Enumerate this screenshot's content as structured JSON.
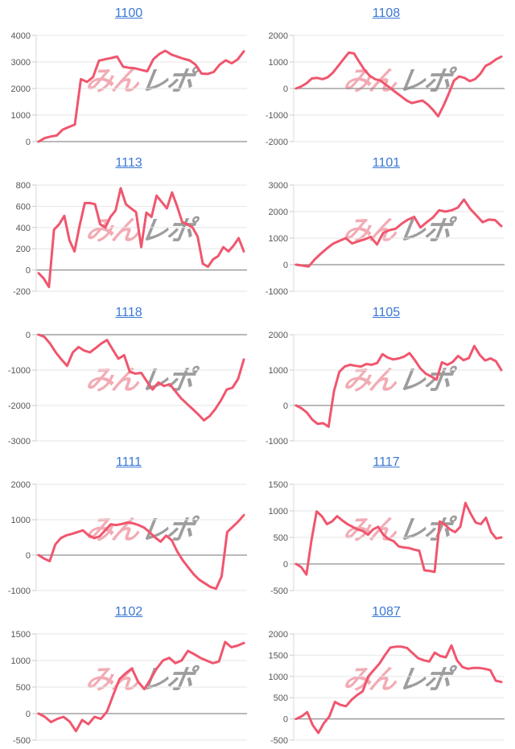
{
  "page": {
    "background": "#ffffff"
  },
  "colors": {
    "line": "#f0566e",
    "title_link": "#3b78d4",
    "grid": "#e6e6e6",
    "zero_line": "#8f8f8f",
    "axis_line": "#d9d9d9",
    "tick_mark": "#c9c9c9",
    "axis_text": "#565656",
    "watermark_pink": "#f2abb4",
    "watermark_gray": "#9d9d9d"
  },
  "watermark": {
    "pink_text": "みん",
    "gray_text": "レポ"
  },
  "chart_data": [
    {
      "type": "line",
      "title": "1100",
      "xlabel": "",
      "ylabel": "",
      "ylim": [
        0,
        4000
      ],
      "yticks": [
        0,
        1000,
        2000,
        3000,
        4000
      ],
      "values": [
        0,
        130,
        190,
        230,
        450,
        550,
        640,
        2350,
        2250,
        2420,
        3050,
        3100,
        3150,
        3200,
        2820,
        2780,
        2760,
        2700,
        2650,
        3100,
        3300,
        3420,
        3280,
        3200,
        3120,
        3060,
        2900,
        2560,
        2550,
        2620,
        2900,
        3060,
        2950,
        3100,
        3400
      ]
    },
    {
      "type": "line",
      "title": "1108",
      "xlabel": "",
      "ylabel": "",
      "ylim": [
        -2000,
        2000
      ],
      "yticks": [
        -2000,
        -1000,
        0,
        1000,
        2000
      ],
      "values": [
        0,
        80,
        200,
        380,
        400,
        350,
        420,
        600,
        850,
        1100,
        1350,
        1320,
        1000,
        700,
        480,
        350,
        300,
        150,
        0,
        -150,
        -300,
        -450,
        -550,
        -500,
        -450,
        -600,
        -800,
        -1050,
        -650,
        -200,
        300,
        450,
        400,
        280,
        350,
        550,
        850,
        950,
        1100,
        1200
      ]
    },
    {
      "type": "line",
      "title": "1113",
      "xlabel": "",
      "ylabel": "",
      "ylim": [
        -200,
        800
      ],
      "yticks": [
        -200,
        0,
        200,
        400,
        600,
        800
      ],
      "values": [
        -30,
        -80,
        -160,
        380,
        430,
        510,
        280,
        175,
        420,
        630,
        630,
        620,
        430,
        400,
        500,
        560,
        770,
        620,
        580,
        545,
        215,
        540,
        500,
        700,
        640,
        580,
        730,
        600,
        450,
        430,
        400,
        315,
        60,
        30,
        100,
        130,
        215,
        175,
        230,
        300,
        175
      ]
    },
    {
      "type": "line",
      "title": "1101",
      "xlabel": "",
      "ylabel": "",
      "ylim": [
        -1000,
        3000
      ],
      "yticks": [
        -1000,
        0,
        1000,
        2000,
        3000
      ],
      "values": [
        0,
        -30,
        -70,
        200,
        420,
        620,
        800,
        900,
        1000,
        800,
        880,
        950,
        1050,
        760,
        1200,
        1300,
        1350,
        1550,
        1700,
        1800,
        1400,
        1600,
        1780,
        2050,
        2000,
        2050,
        2150,
        2450,
        2100,
        1850,
        1600,
        1700,
        1680,
        1450
      ]
    },
    {
      "type": "line",
      "title": "1118",
      "xlabel": "",
      "ylabel": "",
      "ylim": [
        -3000,
        0
      ],
      "yticks": [
        -3000,
        -2000,
        -1000,
        0
      ],
      "values": [
        0,
        -60,
        -250,
        -500,
        -700,
        -880,
        -500,
        -350,
        -450,
        -500,
        -380,
        -250,
        -150,
        -420,
        -680,
        -580,
        -1050,
        -1100,
        -1080,
        -1320,
        -1550,
        -1350,
        -1450,
        -1400,
        -1600,
        -1800,
        -1950,
        -2100,
        -2250,
        -2420,
        -2300,
        -2100,
        -1850,
        -1550,
        -1500,
        -1250,
        -700
      ]
    },
    {
      "type": "line",
      "title": "1105",
      "xlabel": "",
      "ylabel": "",
      "ylim": [
        -1000,
        2000
      ],
      "yticks": [
        -1000,
        0,
        1000,
        2000
      ],
      "values": [
        0,
        -80,
        -200,
        -400,
        -520,
        -500,
        -600,
        400,
        950,
        1100,
        1150,
        1120,
        1100,
        1170,
        1150,
        1200,
        1450,
        1350,
        1300,
        1330,
        1380,
        1480,
        1280,
        1050,
        900,
        820,
        730,
        1220,
        1150,
        1230,
        1400,
        1280,
        1340,
        1680,
        1430,
        1270,
        1330,
        1250,
        1000
      ]
    },
    {
      "type": "line",
      "title": "1111",
      "xlabel": "",
      "ylabel": "",
      "ylim": [
        -1000,
        2000
      ],
      "yticks": [
        -1000,
        0,
        1000,
        2000
      ],
      "values": [
        0,
        -100,
        -170,
        300,
        480,
        560,
        600,
        650,
        700,
        560,
        480,
        530,
        700,
        870,
        850,
        880,
        920,
        900,
        850,
        780,
        650,
        500,
        380,
        550,
        420,
        100,
        -150,
        -350,
        -550,
        -700,
        -800,
        -900,
        -950,
        -600,
        650,
        800,
        950,
        1130
      ]
    },
    {
      "type": "line",
      "title": "1117",
      "xlabel": "",
      "ylabel": "",
      "ylim": [
        -500,
        1500
      ],
      "yticks": [
        -500,
        0,
        500,
        1000,
        1500
      ],
      "values": [
        0,
        -60,
        -200,
        450,
        990,
        900,
        750,
        800,
        900,
        820,
        750,
        700,
        650,
        620,
        550,
        650,
        700,
        550,
        470,
        430,
        330,
        310,
        300,
        270,
        250,
        -120,
        -130,
        -150,
        800,
        740,
        650,
        600,
        700,
        1150,
        950,
        780,
        750,
        870,
        600,
        480,
        500
      ]
    },
    {
      "type": "line",
      "title": "1102",
      "xlabel": "",
      "ylabel": "",
      "ylim": [
        -500,
        1500
      ],
      "yticks": [
        -500,
        0,
        500,
        1000,
        1500
      ],
      "values": [
        0,
        -60,
        -160,
        -100,
        -60,
        -150,
        -330,
        -120,
        -200,
        -60,
        -100,
        40,
        350,
        650,
        760,
        850,
        600,
        460,
        650,
        850,
        1000,
        1050,
        950,
        1000,
        1180,
        1120,
        1050,
        1000,
        950,
        980,
        1350,
        1250,
        1280,
        1330
      ]
    },
    {
      "type": "line",
      "title": "1087",
      "xlabel": "",
      "ylabel": "",
      "ylim": [
        -500,
        2000
      ],
      "yticks": [
        -500,
        0,
        500,
        1000,
        1500,
        2000
      ],
      "values": [
        0,
        60,
        160,
        -150,
        -330,
        -100,
        60,
        400,
        330,
        300,
        450,
        560,
        650,
        1000,
        1150,
        1300,
        1500,
        1680,
        1700,
        1700,
        1670,
        1550,
        1430,
        1380,
        1350,
        1560,
        1480,
        1450,
        1730,
        1380,
        1220,
        1180,
        1200,
        1200,
        1180,
        1150,
        900,
        870
      ]
    }
  ]
}
